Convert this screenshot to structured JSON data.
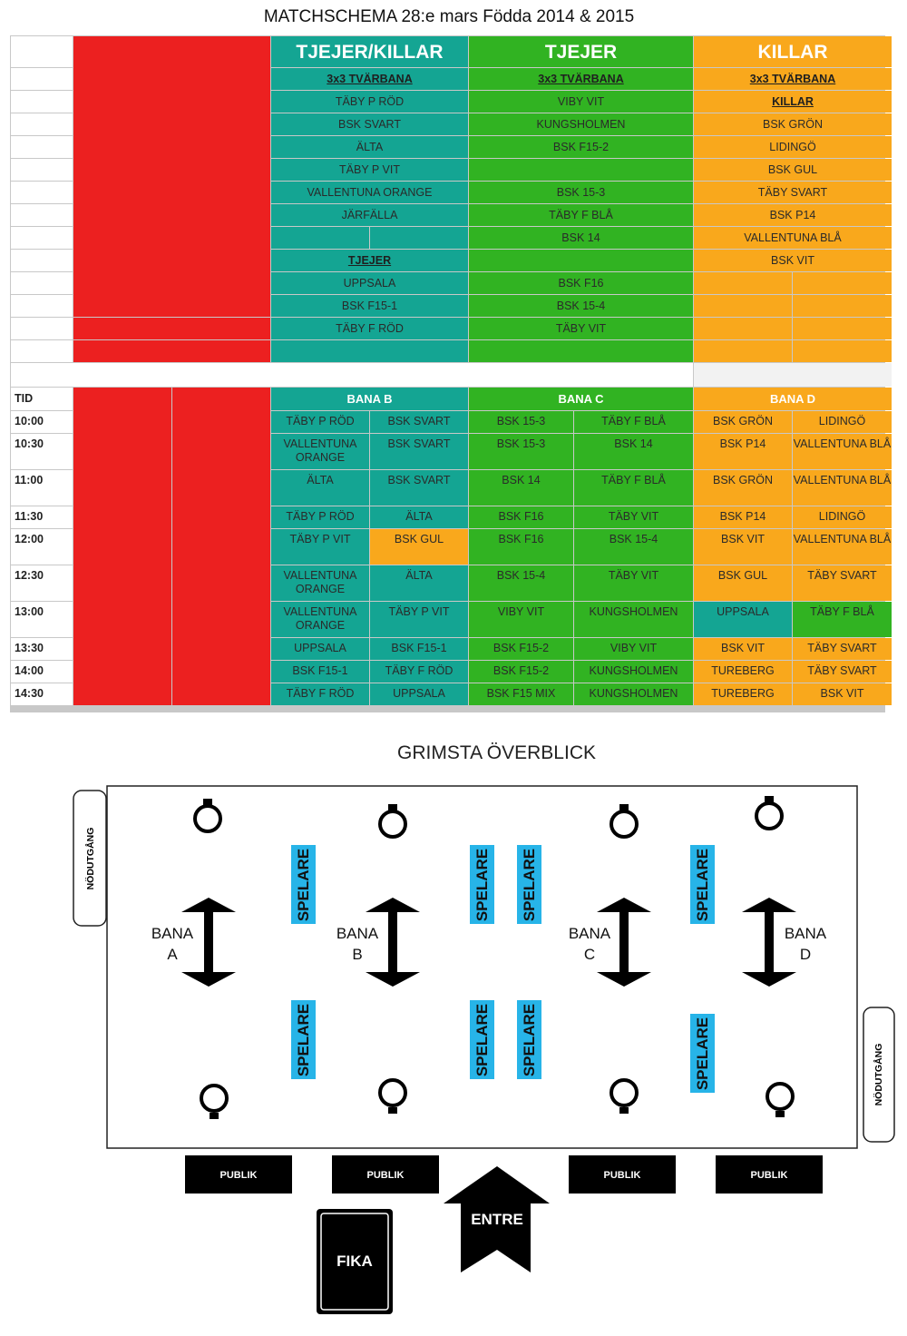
{
  "title": "MATCHSCHEMA 28:e mars Födda 2014 & 2015",
  "headers": {
    "mixed": "TJEJER/KILLAR",
    "girls": "TJEJER",
    "boys": "KILLAR"
  },
  "section": "3x3 TVÄRBANA",
  "teams": {
    "mixed": [
      "TÄBY P RÖD",
      "BSK SVART",
      "ÄLTA",
      "TÄBY P VIT",
      "VALLENTUNA ORANGE",
      "JÄRFÄLLA"
    ],
    "mixed_girls_label": "TJEJER",
    "mixed_girls": [
      "UPPSALA",
      "BSK F15-1",
      "TÄBY F RÖD"
    ],
    "girls": [
      "VIBY VIT",
      "KUNGSHOLMEN",
      "BSK F15-2",
      "",
      "BSK 15-3",
      "TÄBY F BLÅ",
      "BSK 14",
      "",
      "BSK F16",
      "BSK 15-4",
      "TÄBY VIT"
    ],
    "boys_label": "KILLAR",
    "boys": [
      "BSK GRÖN",
      "LIDINGÖ",
      "BSK GUL",
      "TÄBY SVART",
      "BSK P14",
      "VALLENTUNA BLÅ",
      "BSK VIT"
    ]
  },
  "schedule": {
    "tid_label": "TID",
    "courts": [
      "BANA B",
      "BANA C",
      "BANA D"
    ],
    "rows": [
      {
        "time": "10:00",
        "b1": "TÄBY P RÖD",
        "b2": "BSK SVART",
        "c1": "BSK 15-3",
        "c2": "TÄBY F BLÅ",
        "d1": "BSK GRÖN",
        "d2": "LIDINGÖ"
      },
      {
        "time": "10:30",
        "b1": "VALLENTUNA ORANGE",
        "b2": "BSK SVART",
        "c1": "BSK 15-3",
        "c2": "BSK 14",
        "d1": "BSK P14",
        "d2": "VALLENTUNA BLÅ"
      },
      {
        "time": "11:00",
        "b1": "ÄLTA",
        "b2": "BSK SVART",
        "c1": "BSK 14",
        "c2": "TÄBY F BLÅ",
        "d1": "BSK GRÖN",
        "d2": "VALLENTUNA BLÅ"
      },
      {
        "time": "11:30",
        "b1": "TÄBY P RÖD",
        "b2": "ÄLTA",
        "c1": "BSK F16",
        "c2": "TÄBY VIT",
        "d1": "BSK P14",
        "d2": "LIDINGÖ"
      },
      {
        "time": "12:00",
        "b1": "TÄBY P VIT",
        "b2": "BSK GUL",
        "c1": "BSK F16",
        "c2": "BSK 15-4",
        "d1": "BSK VIT",
        "d2": "VALLENTUNA BLÅ"
      },
      {
        "time": "12:30",
        "b1": "VALLENTUNA ORANGE",
        "b2": "ÄLTA",
        "c1": "BSK 15-4",
        "c2": "TÄBY VIT",
        "d1": "BSK GUL",
        "d2": "TÄBY SVART"
      },
      {
        "time": "13:00",
        "b1": "VALLENTUNA ORANGE",
        "b2": "TÄBY P VIT",
        "c1": "VIBY VIT",
        "c2": "KUNGSHOLMEN",
        "d1": "UPPSALA",
        "d2": "TÄBY F BLÅ"
      },
      {
        "time": "13:30",
        "b1": "UPPSALA",
        "b2": "BSK F15-1",
        "c1": "BSK F15-2",
        "c2": "VIBY VIT",
        "d1": "BSK VIT",
        "d2": "TÄBY SVART"
      },
      {
        "time": "14:00",
        "b1": "BSK F15-1",
        "b2": "TÄBY F RÖD",
        "c1": "BSK F15-2",
        "c2": "KUNGSHOLMEN",
        "d1": "TUREBERG",
        "d2": "TÄBY SVART"
      },
      {
        "time": "14:30",
        "b1": "TÄBY F RÖD",
        "b2": "UPPSALA",
        "c1": "BSK F15 MIX",
        "c2": "KUNGSHOLMEN",
        "d1": "TUREBERG",
        "d2": "BSK VIT"
      }
    ]
  },
  "map": {
    "title": "GRIMSTA ÖVERBLICK",
    "exit_label": "NÖDUTGÅNG",
    "players_label": "SPELARE",
    "court_word": "BANA",
    "courts": [
      "A",
      "B",
      "C",
      "D"
    ],
    "audience_label": "PUBLIK",
    "entrance_label": "ENTRE",
    "cafe_label": "FIKA"
  },
  "colors": {
    "red": "#ec2020",
    "teal": "#14a593",
    "green": "#31b322",
    "orange": "#f9a81c",
    "players_blue": "#27b4e8"
  }
}
